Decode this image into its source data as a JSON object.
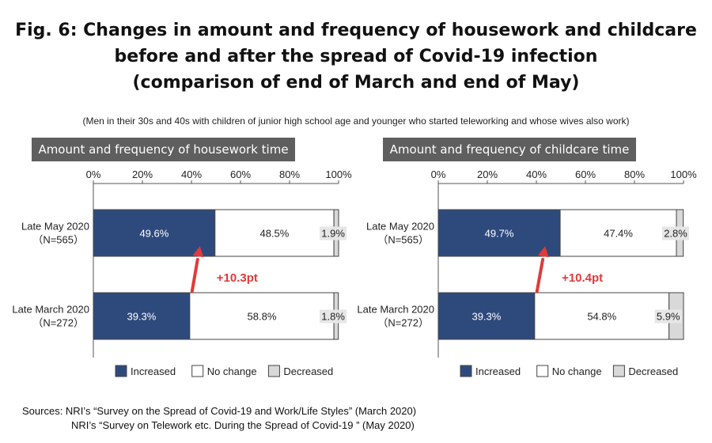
{
  "title_lines": [
    "Fig. 6: Changes in amount and frequency of housework and childcare",
    "before and after the spread of Covid-19 infection",
    "(comparison of end of March and end of May)"
  ],
  "subtitle": "(Men in their 30s and 40s with children of junior high school age and younger who started teleworking and whose wives also work)",
  "sources": [
    "Sources: NRI’s “Survey on the Spread of Covid-19 and Work/Life Styles” (March 2020)",
    "NRI’s “Survey on Telework etc. During the Spread of Covid-19 ” (May 2020)"
  ],
  "colors": {
    "increased": "#2e4a7d",
    "no_change": "#ffffff",
    "decreased": "#d9d9d9",
    "arrow": "#e03a3a",
    "panel_header": "#5f5f5f"
  },
  "chart_data": [
    {
      "type": "bar",
      "orientation": "horizontal",
      "stacked": true,
      "title": "Amount and frequency of housework time",
      "xlim": [
        0,
        100
      ],
      "xticks": [
        "0%",
        "20%",
        "40%",
        "60%",
        "80%",
        "100%"
      ],
      "categories": [
        {
          "label": "Late May 2020",
          "n": "（N=565）"
        },
        {
          "label": "Late March 2020",
          "n": "（N=272）"
        }
      ],
      "series": [
        {
          "name": "Increased",
          "values": [
            49.6,
            39.3
          ],
          "labels": [
            "49.6%",
            "39.3%"
          ]
        },
        {
          "name": "No change",
          "values": [
            48.5,
            58.8
          ],
          "labels": [
            "48.5%",
            "58.8%"
          ]
        },
        {
          "name": "Decreased",
          "values": [
            1.9,
            1.8
          ],
          "labels": [
            "1.9%",
            "1.8%"
          ]
        }
      ],
      "annotation": "+10.3pt",
      "legend_position": "bottom"
    },
    {
      "type": "bar",
      "orientation": "horizontal",
      "stacked": true,
      "title": "Amount and frequency of childcare time",
      "xlim": [
        0,
        100
      ],
      "xticks": [
        "0%",
        "20%",
        "40%",
        "60%",
        "80%",
        "100%"
      ],
      "categories": [
        {
          "label": "Late May 2020",
          "n": "（N=565）"
        },
        {
          "label": "Late March 2020",
          "n": "（N=272）"
        }
      ],
      "series": [
        {
          "name": "Increased",
          "values": [
            49.7,
            39.3
          ],
          "labels": [
            "49.7%",
            "39.3%"
          ]
        },
        {
          "name": "No change",
          "values": [
            47.4,
            54.8
          ],
          "labels": [
            "47.4%",
            "54.8%"
          ]
        },
        {
          "name": "Decreased",
          "values": [
            2.8,
            5.9
          ],
          "labels": [
            "2.8%",
            "5.9%"
          ]
        }
      ],
      "annotation": "+10.4pt",
      "legend_position": "bottom"
    }
  ]
}
